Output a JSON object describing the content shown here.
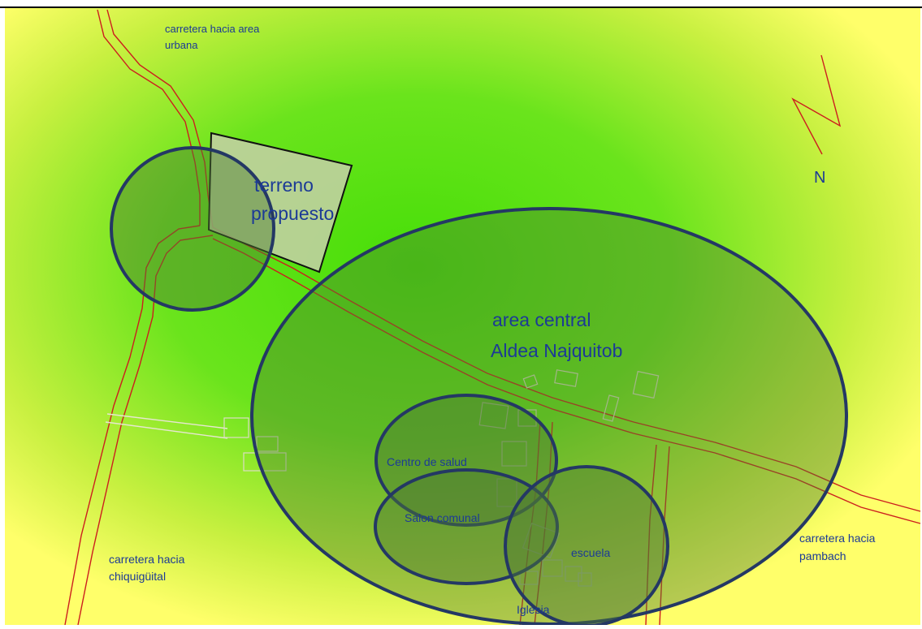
{
  "map": {
    "labels": {
      "road_urban": [
        "carretera hacia area",
        "urbana"
      ],
      "proposed_site": [
        "terreno",
        "propuesto"
      ],
      "central_area": [
        "area central",
        "Aldea Najquitob"
      ],
      "health_center": "Centro de salud",
      "community_hall": "Salon comunal",
      "school": "escuela",
      "church": "Iglesia",
      "road_chiquiguital": [
        "carretera hacia",
        "chiquigüital"
      ],
      "road_pambach": [
        "carretera hacia",
        "pambach"
      ],
      "north": "N"
    },
    "colors": {
      "background_center": "#55e010",
      "background_edge": "#ffff66",
      "road": "#cc1e1e",
      "zone_stroke": "#243864",
      "zone_fill": "#4e7a32",
      "label_text": "#1c3a96",
      "building": "#d8d8c0",
      "site_fill": "#c6cfa8"
    },
    "icons": [
      "north-arrow-icon"
    ]
  }
}
